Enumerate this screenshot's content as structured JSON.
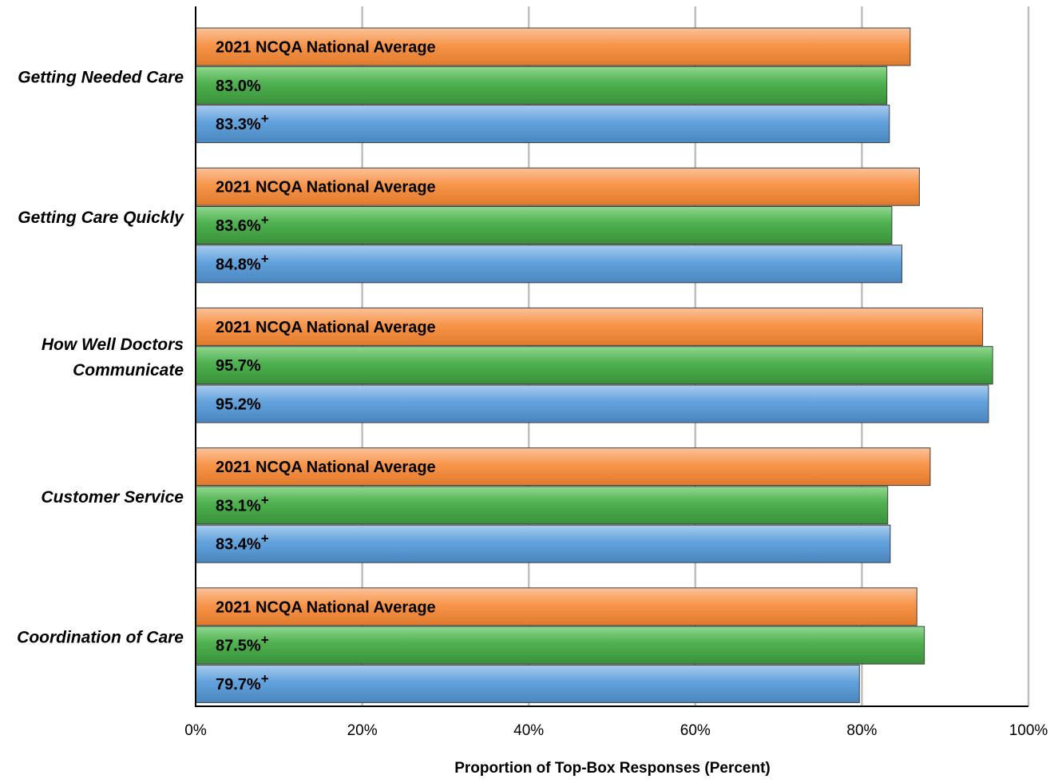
{
  "chart_data": {
    "type": "bar",
    "orientation": "horizontal",
    "title": "",
    "xlabel": "Proportion of Top-Box Responses (Percent)",
    "ylabel": "",
    "xlim": [
      0,
      100
    ],
    "x_ticks": [
      "0%",
      "20%",
      "40%",
      "60%",
      "80%",
      "100%"
    ],
    "x_tick_values": [
      0,
      20,
      40,
      60,
      80,
      100
    ],
    "grid": true,
    "categories": [
      "Getting Needed Care",
      "Getting Care Quickly",
      "How Well Doctors Communicate",
      "Customer Service",
      "Coordination of Care"
    ],
    "category_lines": [
      [
        "Getting Needed Care"
      ],
      [
        "Getting Care Quickly"
      ],
      [
        "How Well Doctors",
        "Communicate"
      ],
      [
        "Customer Service"
      ],
      [
        "Coordination of Care"
      ]
    ],
    "series": [
      {
        "color": "#F79646",
        "values": [
          85.8,
          86.9,
          94.5,
          88.2,
          86.6
        ],
        "labels": [
          "2021 NCQA National Average",
          "2021 NCQA National Average",
          "2021 NCQA National Average",
          "2021 NCQA National Average",
          "2021 NCQA National Average"
        ],
        "marks": [
          "",
          "",
          "",
          "",
          ""
        ]
      },
      {
        "color": "#4EB04E",
        "values": [
          83.0,
          83.6,
          95.7,
          83.1,
          87.5
        ],
        "labels": [
          "83.0%",
          "83.6%",
          "95.7%",
          "83.1%",
          "87.5%"
        ],
        "marks": [
          "",
          "+",
          "",
          "+",
          "+"
        ]
      },
      {
        "color": "#5B9BD5",
        "values": [
          83.3,
          84.8,
          95.2,
          83.4,
          79.7
        ],
        "labels": [
          "83.3%",
          "84.8%",
          "95.2%",
          "83.4%",
          "79.7%"
        ],
        "marks": [
          "+",
          "+",
          "",
          "+",
          "+"
        ]
      }
    ]
  }
}
